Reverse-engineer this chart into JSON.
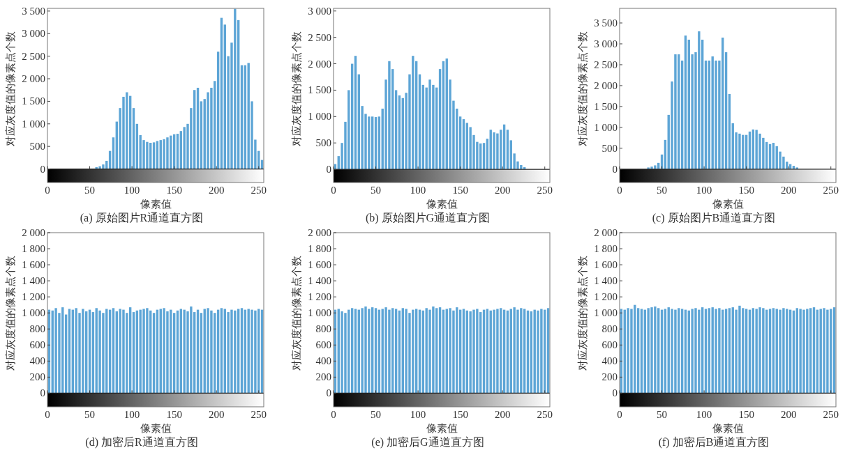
{
  "chart_data": [
    {
      "type": "histogram",
      "title": "(a) 原始图片R通道直方图",
      "xlabel": "像素值",
      "ylabel": "对应灰度值的像素点个数",
      "color": "#5da5d6",
      "xlim": [
        0,
        256
      ],
      "ylim": [
        -300,
        3560
      ],
      "xticks": [
        0,
        50,
        100,
        150,
        200,
        250
      ],
      "yticks": [
        0,
        500,
        {
          "value": 1000,
          "label": "1 000"
        },
        {
          "value": 1500,
          "label": "1 500"
        },
        {
          "value": 2000,
          "label": "2 000"
        },
        {
          "value": 2500,
          "label": "2 500"
        },
        {
          "value": 3000,
          "label": "3 000"
        },
        {
          "value": 3500,
          "label": "3 500"
        }
      ],
      "bins": [
        0,
        4,
        8,
        12,
        16,
        20,
        24,
        28,
        32,
        36,
        40,
        44,
        48,
        52,
        56,
        60,
        64,
        68,
        72,
        76,
        80,
        84,
        88,
        92,
        96,
        100,
        104,
        108,
        112,
        116,
        120,
        124,
        128,
        132,
        136,
        140,
        144,
        148,
        152,
        156,
        160,
        164,
        168,
        172,
        176,
        180,
        184,
        188,
        192,
        196,
        200,
        204,
        208,
        212,
        216,
        220,
        224,
        228,
        232,
        236,
        240,
        244,
        248,
        252,
        256
      ],
      "values": [
        0,
        0,
        0,
        0,
        0,
        0,
        0,
        0,
        0,
        0,
        0,
        0,
        0,
        0,
        40,
        60,
        100,
        180,
        400,
        700,
        1050,
        1350,
        1600,
        1700,
        1620,
        1350,
        1000,
        750,
        640,
        600,
        580,
        590,
        620,
        640,
        660,
        700,
        740,
        770,
        780,
        840,
        930,
        1000,
        1350,
        1750,
        1800,
        1500,
        1550,
        1700,
        1800,
        1950,
        2600,
        3350,
        3200,
        2500,
        2800,
        3550,
        3300,
        2300,
        2300,
        2350,
        1500,
        650,
        400,
        200
      ]
    },
    {
      "type": "histogram",
      "title": "(b) 原始图片G通道直方图",
      "xlabel": "像素值",
      "ylabel": "对应灰度值的像素点个数",
      "color": "#5da5d6",
      "xlim": [
        0,
        256
      ],
      "ylim": [
        -250,
        3050
      ],
      "xticks": [
        0,
        50,
        100,
        150,
        200,
        250
      ],
      "yticks": [
        0,
        500,
        {
          "value": 1000,
          "label": "1 000"
        },
        {
          "value": 1500,
          "label": "1 500"
        },
        {
          "value": 2000,
          "label": "2 000"
        },
        {
          "value": 2500,
          "label": "2 500"
        },
        {
          "value": 3000,
          "label": "3 000"
        }
      ],
      "bins": [
        0,
        4,
        8,
        12,
        16,
        20,
        24,
        28,
        32,
        36,
        40,
        44,
        48,
        52,
        56,
        60,
        64,
        68,
        72,
        76,
        80,
        84,
        88,
        92,
        96,
        100,
        104,
        108,
        112,
        116,
        120,
        124,
        128,
        132,
        136,
        140,
        144,
        148,
        152,
        156,
        160,
        164,
        168,
        172,
        176,
        180,
        184,
        188,
        192,
        196,
        200,
        204,
        208,
        212,
        216,
        220,
        224,
        228,
        232,
        236,
        240,
        244,
        248,
        252,
        256
      ],
      "values": [
        100,
        250,
        500,
        900,
        1500,
        2000,
        2150,
        1800,
        1200,
        1050,
        1000,
        1000,
        990,
        1000,
        1150,
        1700,
        2050,
        1900,
        1500,
        1400,
        1350,
        1450,
        1800,
        2150,
        2050,
        1800,
        1600,
        1550,
        1700,
        1600,
        1550,
        1900,
        2050,
        2100,
        1700,
        1300,
        1150,
        1000,
        950,
        880,
        800,
        650,
        520,
        490,
        500,
        580,
        750,
        700,
        680,
        750,
        850,
        750,
        550,
        300,
        150,
        80,
        40,
        0,
        0,
        0,
        0,
        0,
        0,
        0
      ]
    },
    {
      "type": "histogram",
      "title": "(c) 原始图片B通道直方图",
      "xlabel": "像素值",
      "ylabel": "对应灰度值的像素点个数",
      "color": "#5da5d6",
      "xlim": [
        0,
        256
      ],
      "ylim": [
        -320,
        3850
      ],
      "xticks": [
        0,
        50,
        100,
        150,
        200,
        250
      ],
      "yticks": [
        0,
        500,
        {
          "value": 1000,
          "label": "1 000"
        },
        {
          "value": 1500,
          "label": "1 500"
        },
        {
          "value": 2000,
          "label": "2 000"
        },
        {
          "value": 2500,
          "label": "2 500"
        },
        {
          "value": 3000,
          "label": "3 000"
        },
        {
          "value": 3500,
          "label": "3 500"
        }
      ],
      "bins": [
        0,
        4,
        8,
        12,
        16,
        20,
        24,
        28,
        32,
        36,
        40,
        44,
        48,
        52,
        56,
        60,
        64,
        68,
        72,
        76,
        80,
        84,
        88,
        92,
        96,
        100,
        104,
        108,
        112,
        116,
        120,
        124,
        128,
        132,
        136,
        140,
        144,
        148,
        152,
        156,
        160,
        164,
        168,
        172,
        176,
        180,
        184,
        188,
        192,
        196,
        200,
        204,
        208,
        212,
        216,
        220,
        224,
        228,
        232,
        236,
        240,
        244,
        248,
        252,
        256
      ],
      "values": [
        0,
        0,
        0,
        0,
        0,
        0,
        0,
        0,
        40,
        60,
        90,
        150,
        350,
        700,
        1300,
        2100,
        2750,
        2750,
        2600,
        3200,
        3100,
        2750,
        2800,
        3300,
        3100,
        2600,
        2600,
        2700,
        2600,
        2600,
        3150,
        2800,
        1800,
        1100,
        880,
        850,
        820,
        820,
        900,
        950,
        940,
        850,
        750,
        650,
        600,
        630,
        550,
        420,
        300,
        180,
        120,
        80,
        40,
        0,
        0,
        0,
        0,
        0,
        0,
        0,
        0,
        0,
        0,
        0
      ]
    },
    {
      "type": "histogram",
      "title": "(d) 加密后R通道直方图",
      "xlabel": "像素值",
      "ylabel": "对应灰度值的像素点个数",
      "color": "#5da5d6",
      "xlim": [
        0,
        256
      ],
      "ylim": [
        -170,
        2000
      ],
      "xticks": [
        0,
        50,
        100,
        150,
        200,
        250
      ],
      "yticks": [
        0,
        200,
        400,
        600,
        800,
        {
          "value": 1000,
          "label": "1 000"
        },
        {
          "value": 1200,
          "label": "1 200"
        },
        {
          "value": 1400,
          "label": "1 400"
        },
        {
          "value": 1600,
          "label": "1 600"
        },
        {
          "value": 1800,
          "label": "1 800"
        },
        {
          "value": 2000,
          "label": "2 000"
        }
      ],
      "bins": [
        0,
        4,
        8,
        12,
        16,
        20,
        24,
        28,
        32,
        36,
        40,
        44,
        48,
        52,
        56,
        60,
        64,
        68,
        72,
        76,
        80,
        84,
        88,
        92,
        96,
        100,
        104,
        108,
        112,
        116,
        120,
        124,
        128,
        132,
        136,
        140,
        144,
        148,
        152,
        156,
        160,
        164,
        168,
        172,
        176,
        180,
        184,
        188,
        192,
        196,
        200,
        204,
        208,
        212,
        216,
        220,
        224,
        228,
        232,
        236,
        240,
        244,
        248,
        252,
        256
      ],
      "values": [
        1040,
        1030,
        1060,
        1000,
        1070,
        980,
        1050,
        1040,
        1060,
        1000,
        1050,
        1020,
        1040,
        1010,
        1060,
        1030,
        1000,
        1050,
        1040,
        1060,
        1020,
        1050,
        1040,
        1000,
        1070,
        1010,
        1030,
        1040,
        1050,
        1060,
        1030,
        1000,
        1040,
        1050,
        1060,
        1020,
        1040,
        1000,
        1030,
        1050,
        1040,
        1020,
        1080,
        1010,
        1040,
        1000,
        1050,
        1060,
        1030,
        1000,
        1040,
        1060,
        1050,
        1010,
        1040,
        1030,
        1050,
        1060,
        1040,
        1050,
        1040,
        1030,
        1050,
        1040
      ]
    },
    {
      "type": "histogram",
      "title": "(e) 加密后G通道直方图",
      "xlabel": "像素值",
      "ylabel": "对应灰度值的像素点个数",
      "color": "#5da5d6",
      "xlim": [
        0,
        256
      ],
      "ylim": [
        -170,
        2000
      ],
      "xticks": [
        0,
        50,
        100,
        150,
        200,
        250
      ],
      "yticks": [
        0,
        200,
        400,
        600,
        800,
        {
          "value": 1000,
          "label": "1 000"
        },
        {
          "value": 1200,
          "label": "1 200"
        },
        {
          "value": 1400,
          "label": "1 400"
        },
        {
          "value": 1600,
          "label": "1 600"
        },
        {
          "value": 1800,
          "label": "1 800"
        },
        {
          "value": 2000,
          "label": "2 000"
        }
      ],
      "bins": [
        0,
        4,
        8,
        12,
        16,
        20,
        24,
        28,
        32,
        36,
        40,
        44,
        48,
        52,
        56,
        60,
        64,
        68,
        72,
        76,
        80,
        84,
        88,
        92,
        96,
        100,
        104,
        108,
        112,
        116,
        120,
        124,
        128,
        132,
        136,
        140,
        144,
        148,
        152,
        156,
        160,
        164,
        168,
        172,
        176,
        180,
        184,
        188,
        192,
        196,
        200,
        204,
        208,
        212,
        216,
        220,
        224,
        228,
        232,
        236,
        240,
        244,
        248,
        252,
        256
      ],
      "values": [
        1040,
        1050,
        1020,
        1000,
        1040,
        1060,
        1050,
        1040,
        1060,
        1080,
        1050,
        1070,
        1060,
        1040,
        1050,
        1070,
        1040,
        1060,
        1050,
        1030,
        1060,
        1050,
        1000,
        1040,
        1050,
        1040,
        1030,
        1060,
        1040,
        1080,
        1060,
        1070,
        1040,
        1050,
        1060,
        1030,
        1070,
        1040,
        1050,
        1030,
        1020,
        1040,
        1050,
        1010,
        1040,
        1050,
        1030,
        1040,
        1050,
        1060,
        1040,
        1030,
        1050,
        1070,
        1040,
        1060,
        1050,
        1030,
        1020,
        1040,
        1030,
        1050,
        1040,
        1060
      ]
    },
    {
      "type": "histogram",
      "title": "(f) 加密后B通道直方图",
      "xlabel": "像素值",
      "ylabel": "对应灰度值的像素点个数",
      "color": "#5da5d6",
      "xlim": [
        0,
        256
      ],
      "ylim": [
        -170,
        2000
      ],
      "xticks": [
        0,
        50,
        100,
        150,
        200,
        250
      ],
      "yticks": [
        0,
        200,
        400,
        600,
        800,
        {
          "value": 1000,
          "label": "1 000"
        },
        {
          "value": 1200,
          "label": "1 200"
        },
        {
          "value": 1400,
          "label": "1 400"
        },
        {
          "value": 1600,
          "label": "1 600"
        },
        {
          "value": 1800,
          "label": "1 800"
        },
        {
          "value": 2000,
          "label": "2 000"
        }
      ],
      "bins": [
        0,
        4,
        8,
        12,
        16,
        20,
        24,
        28,
        32,
        36,
        40,
        44,
        48,
        52,
        56,
        60,
        64,
        68,
        72,
        76,
        80,
        84,
        88,
        92,
        96,
        100,
        104,
        108,
        112,
        116,
        120,
        124,
        128,
        132,
        136,
        140,
        144,
        148,
        152,
        156,
        160,
        164,
        168,
        172,
        176,
        180,
        184,
        188,
        192,
        196,
        200,
        204,
        208,
        212,
        216,
        220,
        224,
        228,
        232,
        236,
        240,
        244,
        248,
        252,
        256
      ],
      "values": [
        1050,
        1040,
        1060,
        1050,
        1100,
        1060,
        1050,
        1040,
        1060,
        1070,
        1080,
        1060,
        1040,
        1050,
        1070,
        1050,
        1040,
        1060,
        1050,
        1040,
        1030,
        1050,
        1060,
        1040,
        1070,
        1050,
        1060,
        1070,
        1050,
        1060,
        1040,
        1050,
        1060,
        1070,
        1040,
        1090,
        1060,
        1050,
        1040,
        1060,
        1050,
        1070,
        1060,
        1040,
        1050,
        1060,
        1050,
        1040,
        1060,
        1050,
        1040,
        1030,
        1060,
        1050,
        1040,
        1050,
        1060,
        1070,
        1040,
        1050,
        1060,
        1040,
        1050,
        1070
      ]
    }
  ]
}
